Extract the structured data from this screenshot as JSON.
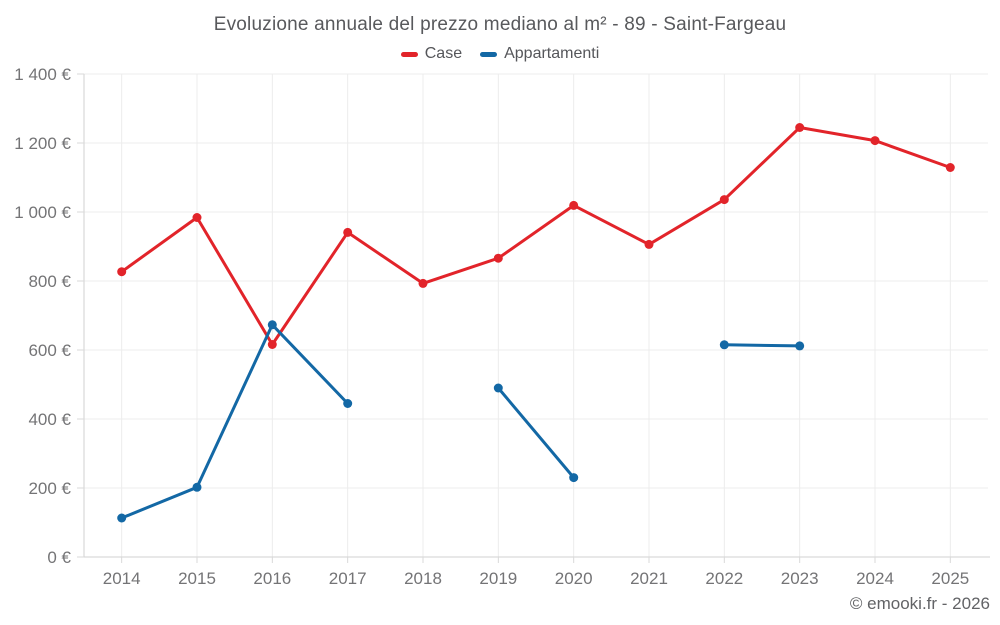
{
  "page": {
    "copyright": "© emooki.fr - 2026"
  },
  "chart_data": {
    "type": "line",
    "title": "Evoluzione annuale del prezzo mediano al m² - 89 - Saint-Fargeau",
    "categories": [
      "2014",
      "2015",
      "2016",
      "2017",
      "2018",
      "2019",
      "2020",
      "2021",
      "2022",
      "2023",
      "2024",
      "2025"
    ],
    "series": [
      {
        "name": "Case",
        "color": "#e2242a",
        "values": [
          827,
          984,
          616,
          941,
          793,
          866,
          1019,
          906,
          1036,
          1245,
          1207,
          1129
        ]
      },
      {
        "name": "Appartamenti",
        "color": "#1368a5",
        "values": [
          113,
          202,
          673,
          445,
          null,
          490,
          230,
          null,
          615,
          612,
          null,
          null
        ]
      }
    ],
    "xlabel": "",
    "ylabel": "",
    "ylim": [
      0,
      1400
    ],
    "ytick_step": 200,
    "ytick_labels": [
      "0 €",
      "200 €",
      "400 €",
      "600 €",
      "800 €",
      "1 000 €",
      "1 200 €",
      "1 400 €"
    ],
    "grid": true,
    "legend_position": "top",
    "unit": "€"
  },
  "colors": {
    "grid": "#ececec",
    "axis": "#d2d2d2",
    "tick": "#d9d9d9",
    "tick_text": "#747476",
    "title_text": "#58595c",
    "background": "#ffffff"
  }
}
